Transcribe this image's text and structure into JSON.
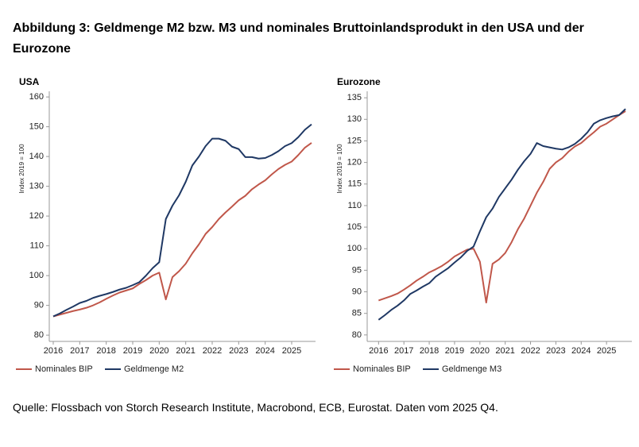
{
  "title": "Abbildung 3: Geldmenge M2 bzw. M3 und nominales Bruttoinlandsprodukt in den USA und der Eurozone",
  "source": "Quelle: Flossbach von Storch Research Institute, Macrobond, ECB, Eurostat. Daten vom 2025 Q4.",
  "chart_data": [
    {
      "type": "line",
      "title": "USA",
      "y_label": "Index 2019 = 100",
      "x": [
        2016,
        2016.25,
        2016.5,
        2016.75,
        2017,
        2017.25,
        2017.5,
        2017.75,
        2018,
        2018.25,
        2018.5,
        2018.75,
        2019,
        2019.25,
        2019.5,
        2019.75,
        2020,
        2020.25,
        2020.5,
        2020.75,
        2021,
        2021.25,
        2021.5,
        2021.75,
        2022,
        2022.25,
        2022.5,
        2022.75,
        2023,
        2023.25,
        2023.5,
        2023.75,
        2024,
        2024.25,
        2024.5,
        2024.75,
        2025,
        2025.25,
        2025.5,
        2025.75
      ],
      "series": [
        {
          "name": "Nominales BIP",
          "color": "#c0574a",
          "values": [
            86.3,
            86.9,
            87.5,
            88.1,
            88.6,
            89.2,
            90.0,
            91.0,
            92.2,
            93.3,
            94.3,
            95.0,
            95.7,
            97.2,
            98.5,
            100.0,
            101.0,
            92.0,
            99.5,
            101.5,
            104.0,
            107.5,
            110.5,
            114.0,
            116.3,
            119.0,
            121.2,
            123.2,
            125.3,
            126.8,
            129.0,
            130.6,
            132.0,
            134.0,
            135.8,
            137.2,
            138.3,
            140.5,
            143.0,
            144.6
          ]
        },
        {
          "name": "Geldmenge M2",
          "color": "#1f3864",
          "values": [
            86.3,
            87.3,
            88.5,
            89.6,
            90.8,
            91.5,
            92.5,
            93.2,
            93.8,
            94.5,
            95.3,
            95.9,
            96.8,
            97.8,
            100.0,
            102.5,
            104.5,
            119.0,
            123.5,
            127.0,
            131.5,
            137.0,
            140.0,
            143.5,
            146.0,
            146.0,
            145.3,
            143.3,
            142.5,
            139.8,
            139.8,
            139.3,
            139.5,
            140.5,
            141.8,
            143.5,
            144.5,
            146.5,
            149.0,
            150.8
          ]
        }
      ],
      "xlim": [
        2015.85,
        2025.9
      ],
      "xticks": [
        2016,
        2017,
        2018,
        2019,
        2020,
        2021,
        2022,
        2023,
        2024,
        2025
      ],
      "ylim": [
        77.9,
        161.9
      ],
      "yticks": [
        80,
        90,
        100,
        110,
        120,
        130,
        140,
        150,
        160
      ]
    },
    {
      "type": "line",
      "title": "Eurozone",
      "y_label": "Index 2019 = 100",
      "x": [
        2016,
        2016.25,
        2016.5,
        2016.75,
        2017,
        2017.25,
        2017.5,
        2017.75,
        2018,
        2018.25,
        2018.5,
        2018.75,
        2019,
        2019.25,
        2019.5,
        2019.75,
        2020,
        2020.25,
        2020.5,
        2020.75,
        2021,
        2021.25,
        2021.5,
        2021.75,
        2022,
        2022.25,
        2022.5,
        2022.75,
        2023,
        2023.25,
        2023.5,
        2023.75,
        2024,
        2024.25,
        2024.5,
        2024.75,
        2025,
        2025.25,
        2025.5,
        2025.75
      ],
      "series": [
        {
          "name": "Nominales BIP",
          "color": "#c0574a",
          "values": [
            88.0,
            88.5,
            89.0,
            89.6,
            90.5,
            91.5,
            92.6,
            93.5,
            94.5,
            95.2,
            96.0,
            97.0,
            98.2,
            99.0,
            99.8,
            100.0,
            97.0,
            87.5,
            96.5,
            97.5,
            99.0,
            101.5,
            104.5,
            107.0,
            110.0,
            113.0,
            115.5,
            118.5,
            120.0,
            121.0,
            122.5,
            123.7,
            124.5,
            125.8,
            127.0,
            128.3,
            129.0,
            130.0,
            131.0,
            131.9
          ]
        },
        {
          "name": "Geldmenge M3",
          "color": "#1f3864",
          "values": [
            83.5,
            84.6,
            85.8,
            86.8,
            88.0,
            89.5,
            90.3,
            91.2,
            92.0,
            93.5,
            94.5,
            95.5,
            96.8,
            98.0,
            99.5,
            100.5,
            104.0,
            107.3,
            109.3,
            112.0,
            114.0,
            116.0,
            118.3,
            120.3,
            122.0,
            124.5,
            123.8,
            123.5,
            123.2,
            123.0,
            123.5,
            124.3,
            125.5,
            127.0,
            129.0,
            129.8,
            130.3,
            130.7,
            131.0,
            132.4
          ]
        }
      ],
      "xlim": [
        2015.55,
        2026.0
      ],
      "xticks": [
        2016,
        2017,
        2018,
        2019,
        2020,
        2021,
        2022,
        2023,
        2024,
        2025
      ],
      "ylim": [
        78.5,
        136.5
      ],
      "yticks": [
        80,
        85,
        90,
        95,
        100,
        105,
        110,
        115,
        120,
        125,
        130,
        135
      ]
    }
  ]
}
